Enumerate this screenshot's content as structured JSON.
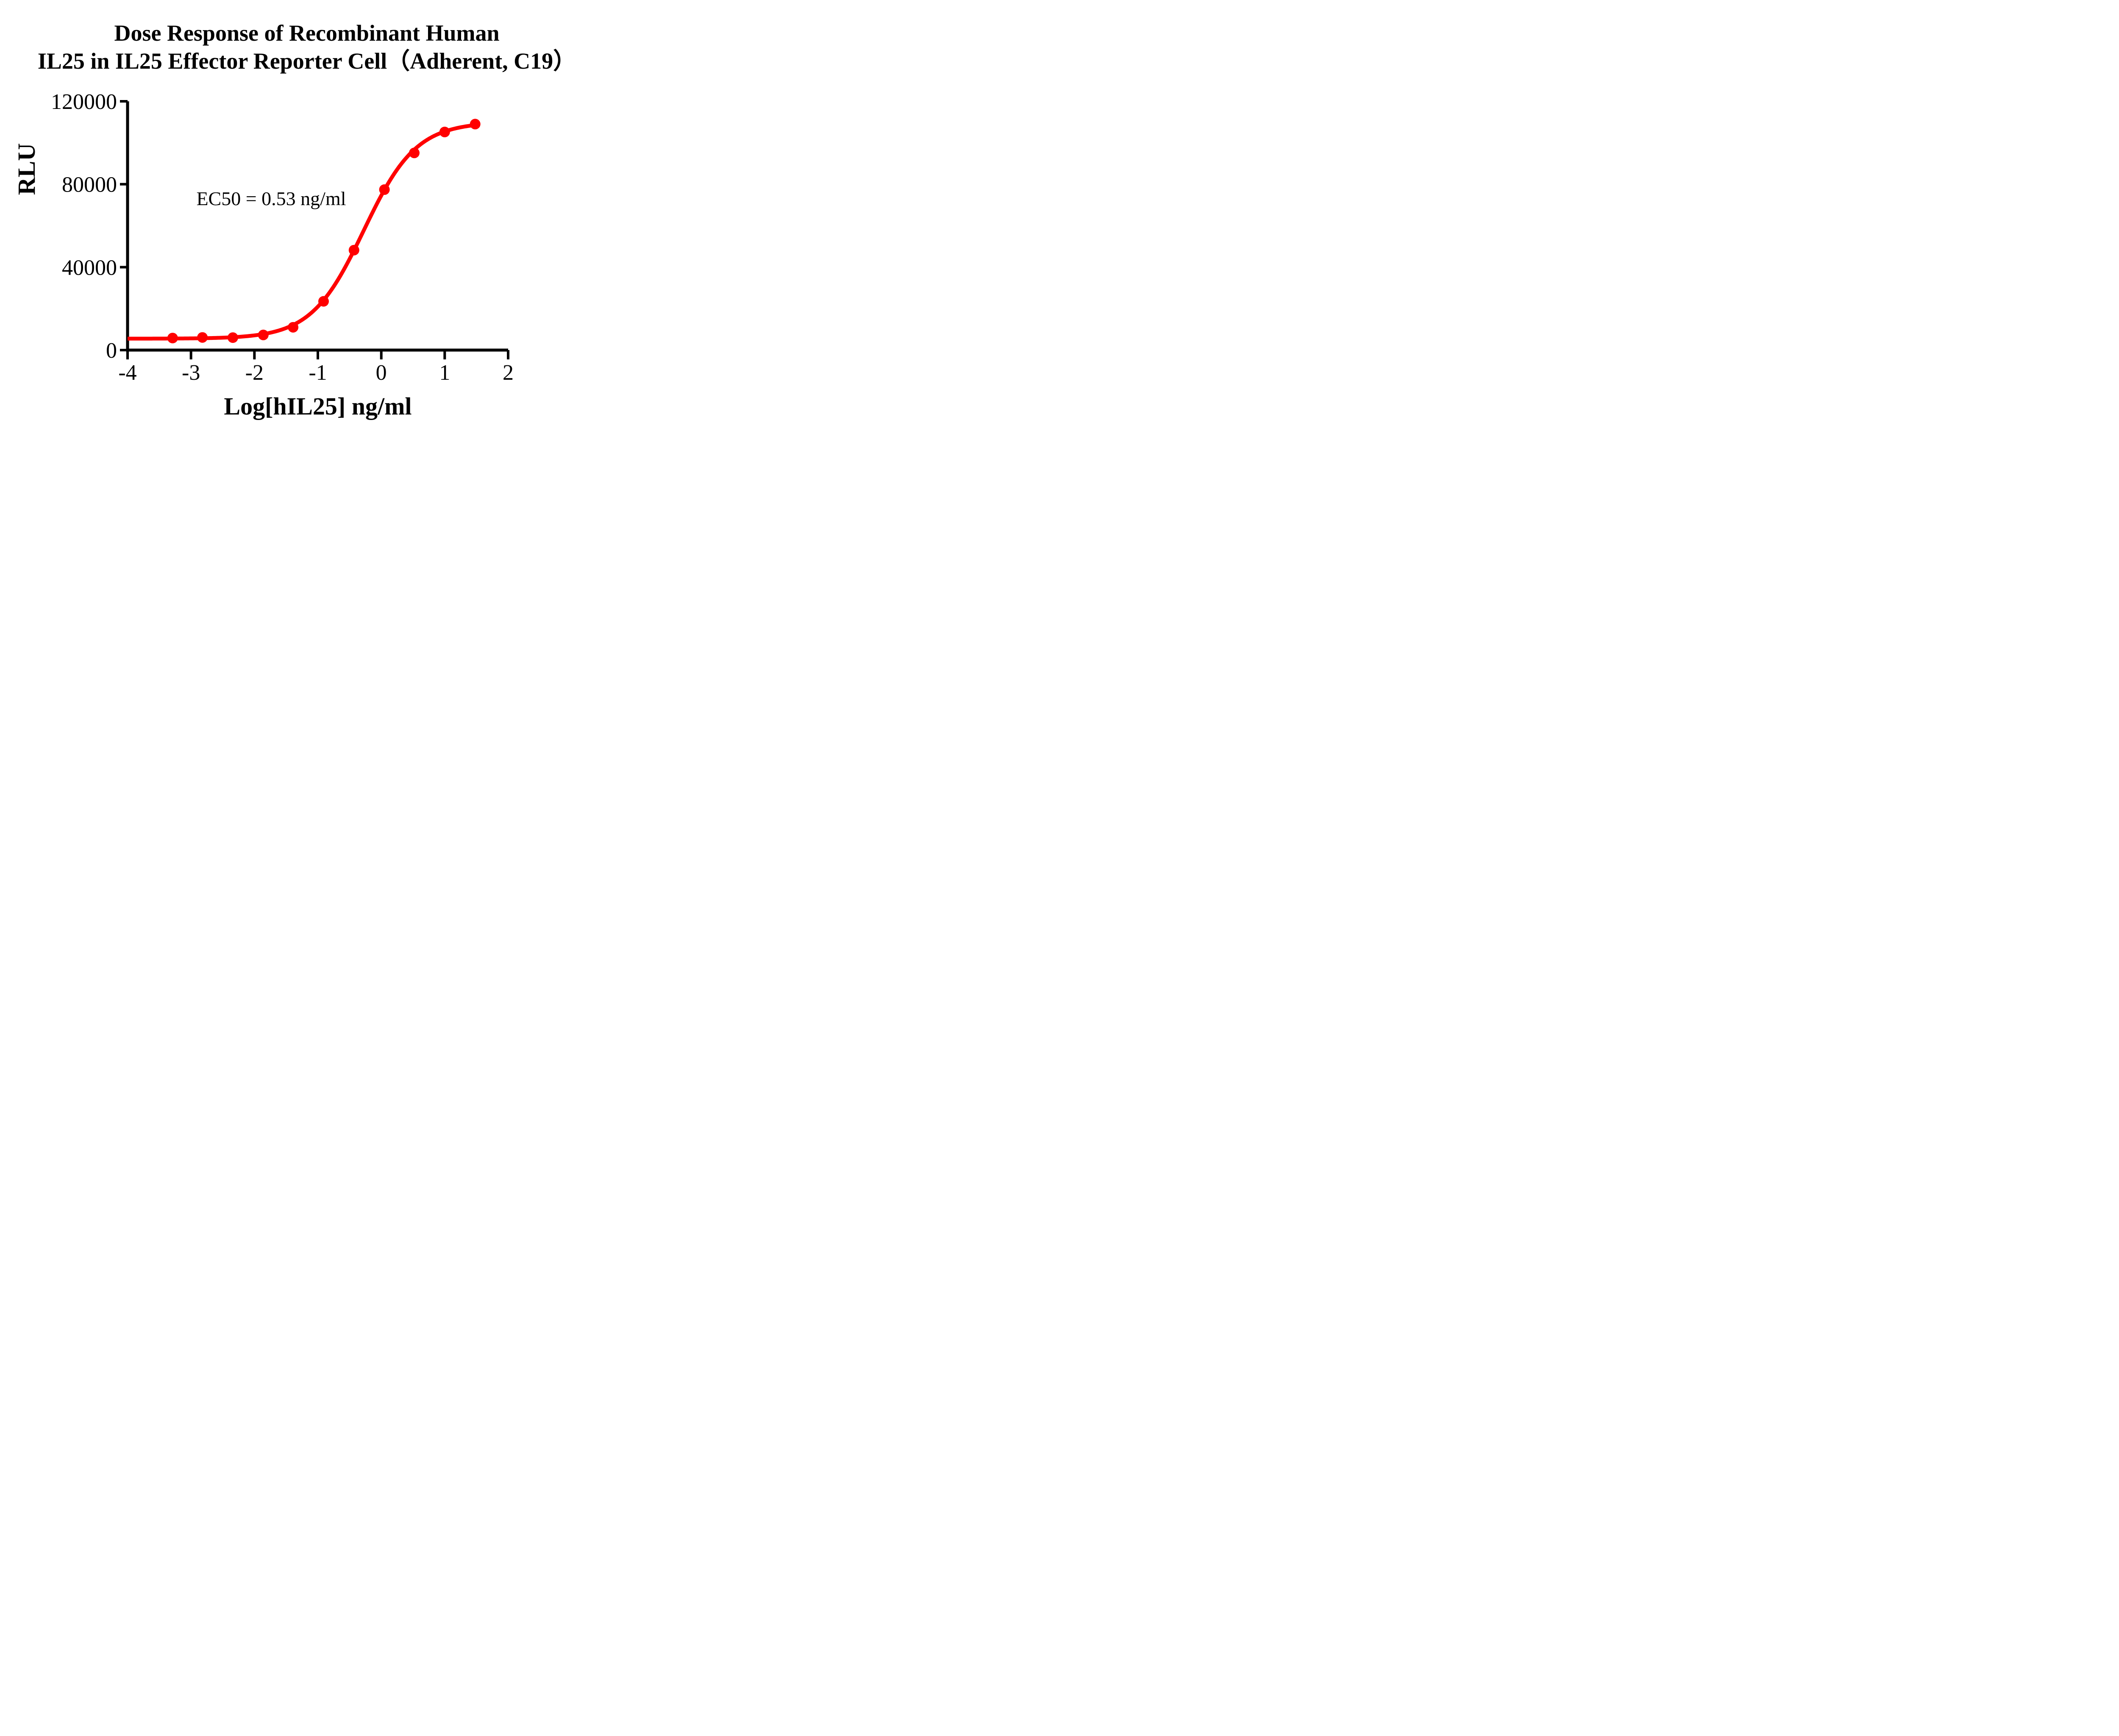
{
  "title": {
    "line1": "Dose Response of Recombinant Human",
    "line2": "IL25 in IL25 Effector Reporter Cell（Adherent, C19）"
  },
  "annotation": {
    "text": "EC50 = 0.53 ng/ml",
    "ec50_value_ng_ml": 0.53
  },
  "axes": {
    "x": {
      "label": "Log[hIL25] ng/ml",
      "min": -4,
      "max": 2,
      "ticks": [
        -4,
        -3,
        -2,
        -1,
        0,
        1,
        2
      ]
    },
    "y": {
      "label": "RLU",
      "min": 0,
      "max": 120000,
      "ticks": [
        0,
        40000,
        80000,
        120000
      ]
    }
  },
  "colors": {
    "curve": "#ff0000",
    "axis": "#000000",
    "text": "#000000",
    "background": "#ffffff"
  },
  "chart_data": {
    "type": "line",
    "title": "Dose Response of Recombinant Human IL25 in IL25 Effector Reporter Cell（Adherent, C19）",
    "xlabel": "Log[hIL25] ng/ml",
    "ylabel": "RLU",
    "xlim": [
      -4,
      2
    ],
    "ylim": [
      0,
      120000
    ],
    "x_ticks": [
      -4,
      -3,
      -2,
      -1,
      0,
      1,
      2
    ],
    "y_ticks": [
      0,
      40000,
      80000,
      120000
    ],
    "grid": false,
    "legend_position": "none",
    "series": [
      {
        "name": "Recombinant Human IL25",
        "color": "#ff0000",
        "marker": "circle",
        "points_log_x_rlu": [
          [
            -3.29,
            5800
          ],
          [
            -2.82,
            6100
          ],
          [
            -2.34,
            6000
          ],
          [
            -1.86,
            7300
          ],
          [
            -1.39,
            11000
          ],
          [
            -0.91,
            23500
          ],
          [
            -0.43,
            48200
          ],
          [
            0.05,
            77400
          ],
          [
            0.52,
            95100
          ],
          [
            1.0,
            105200
          ],
          [
            1.48,
            109000
          ]
        ]
      }
    ],
    "fit_curve": {
      "model": "4PL sigmoidal dose-response",
      "bottom_rlu": 5500,
      "top_rlu": 110000,
      "log_ec50": -0.2757,
      "hill_slope": 1.05,
      "x_start": -4,
      "x_end": 1.48,
      "ec50_ng_ml": 0.53
    }
  }
}
